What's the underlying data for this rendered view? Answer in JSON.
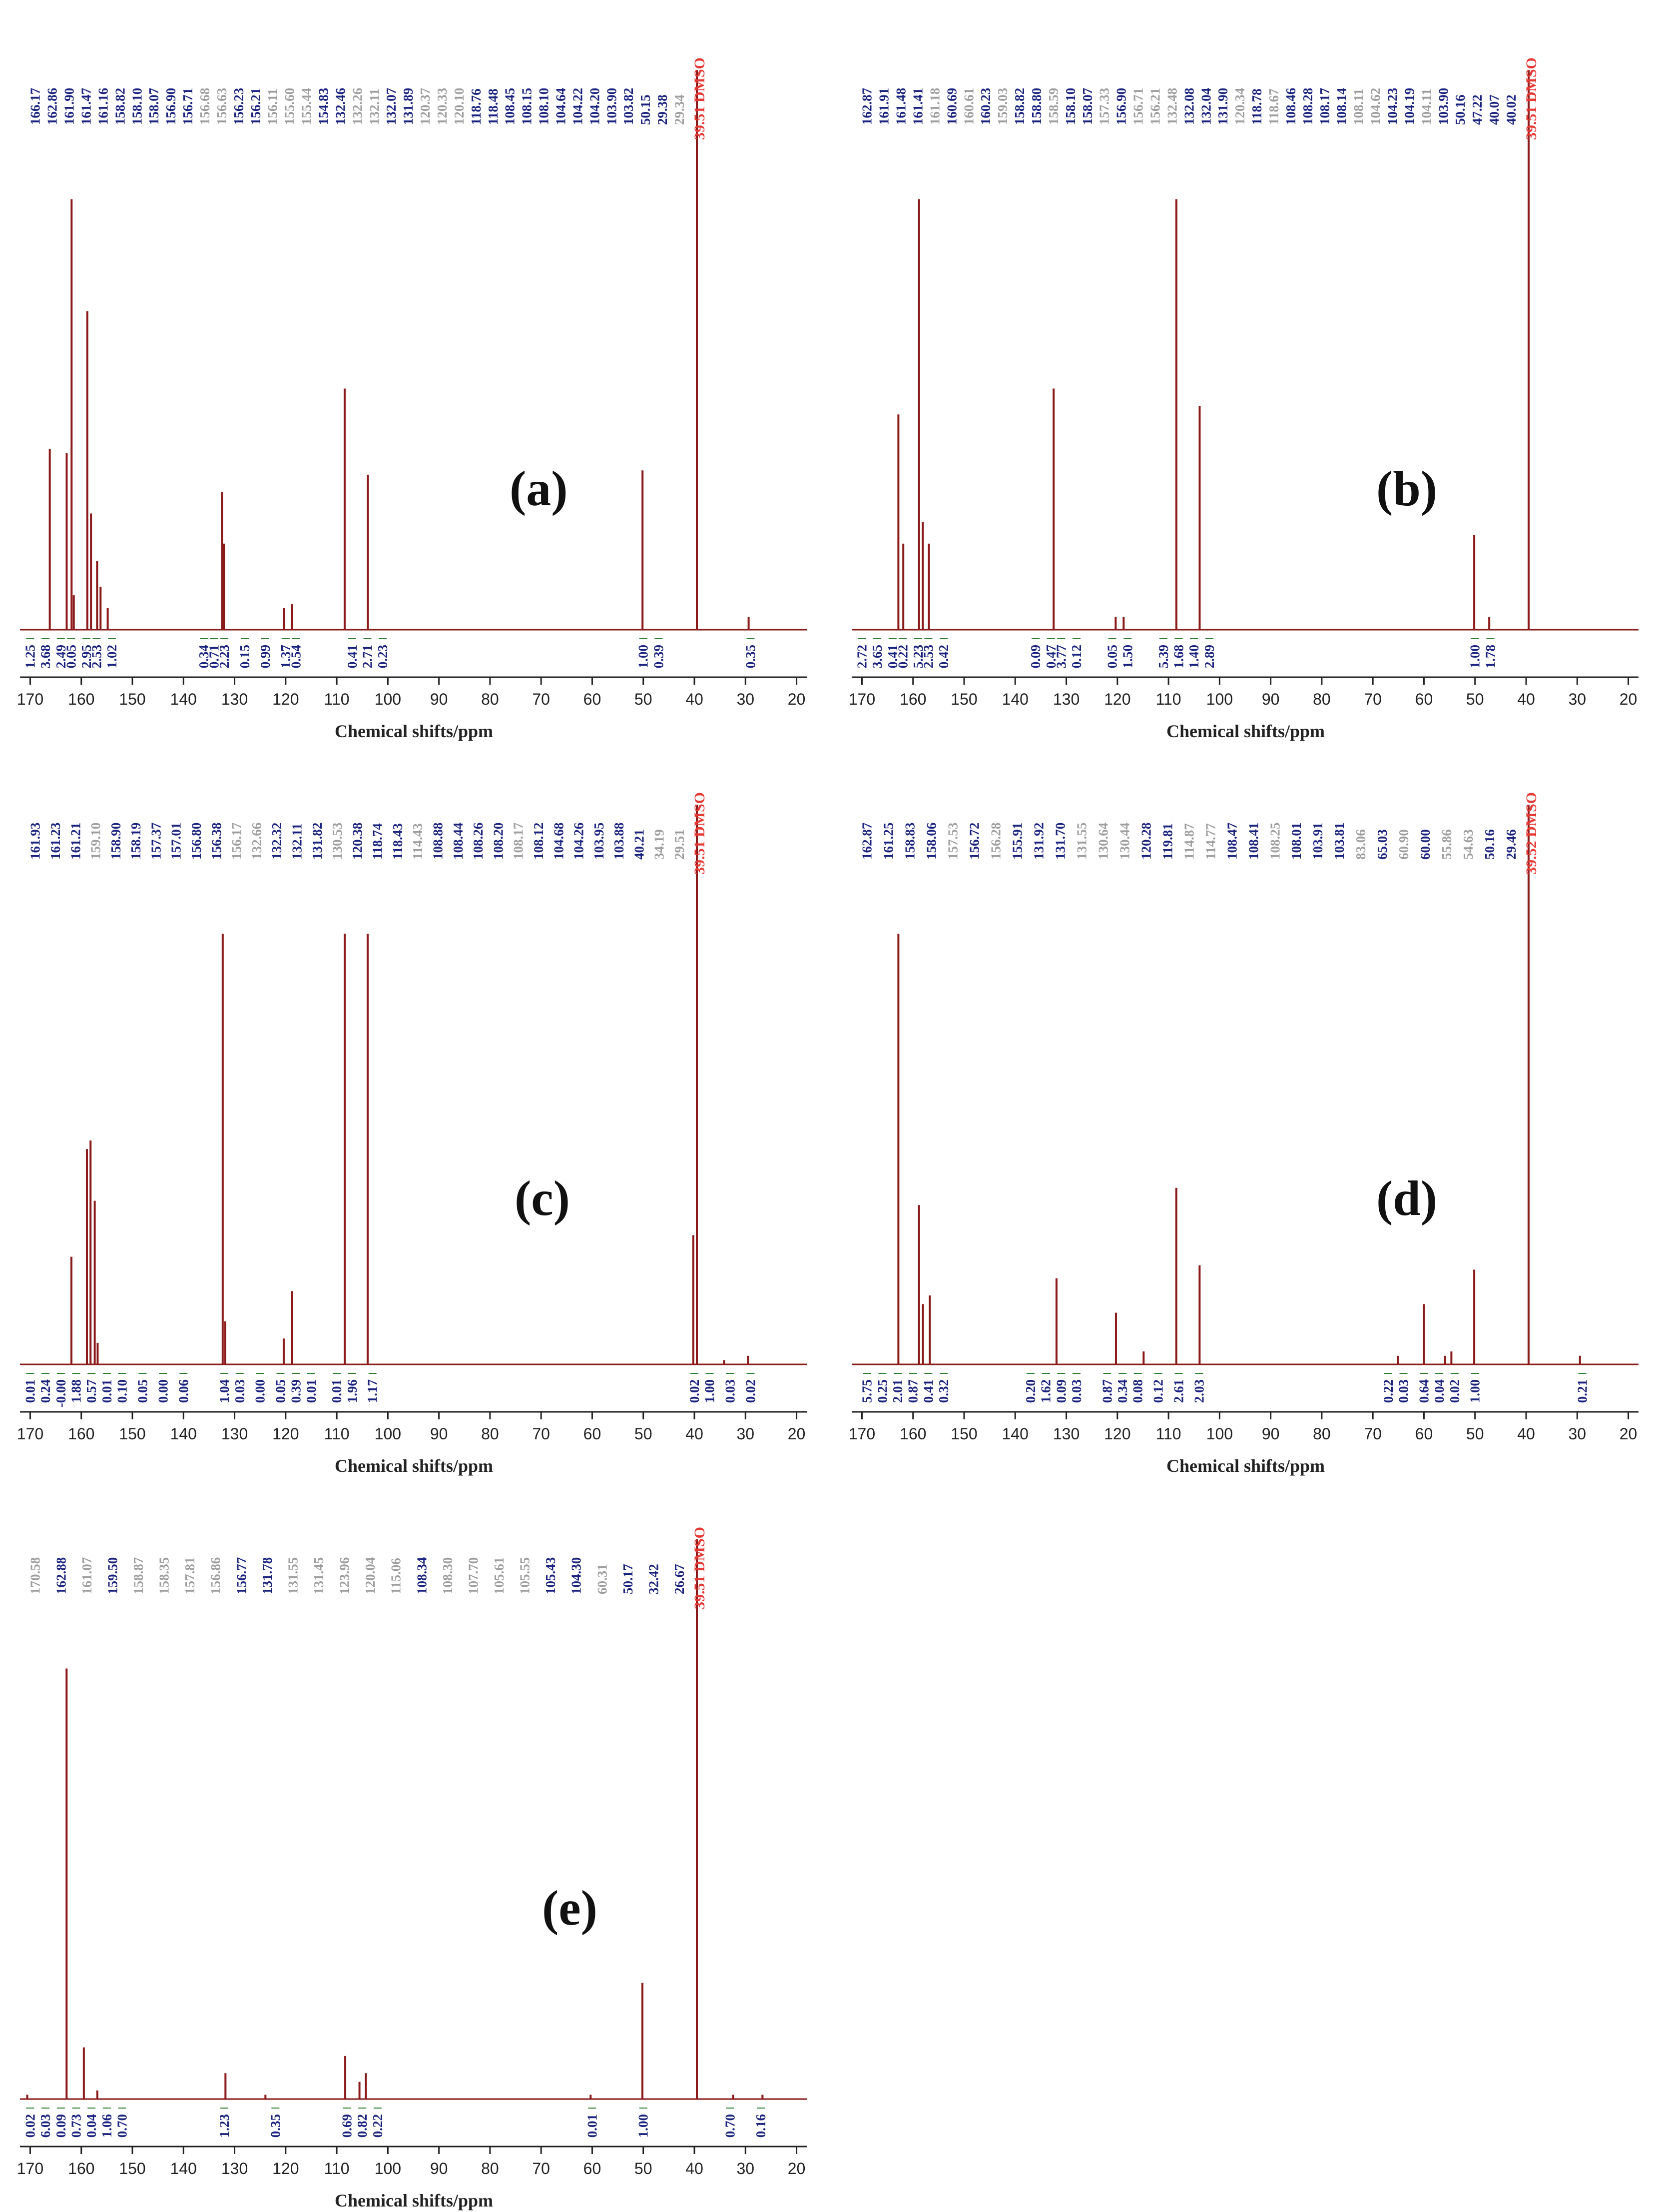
{
  "colors": {
    "spectrum": "#8b1a1a",
    "peakLabel": "#1a237e",
    "faintLabel": "#9e9e9e",
    "solvent": "#e53935",
    "integral": "#2e7d32",
    "axis": "#222222"
  },
  "chart_data": [
    {
      "type": "line",
      "panel": "(a)",
      "xlabel": "Chemical shifts/ppm",
      "xlim": [
        172,
        18
      ],
      "x_reversed": true,
      "xticks": [
        170,
        160,
        150,
        140,
        130,
        120,
        110,
        100,
        90,
        80,
        70,
        60,
        50,
        40,
        30,
        20
      ],
      "solvent_label": "39.51 DMSO",
      "peak_labels": [
        "166.17",
        "162.86",
        "161.90",
        "161.47",
        "161.16",
        "158.82",
        "158.10",
        "158.07",
        "156.90",
        "156.71",
        "156.68",
        "156.63",
        "156.23",
        "156.21",
        "156.11",
        "155.60",
        "155.44",
        "154.83",
        "132.46",
        "132.26",
        "132.11",
        "132.07",
        "131.89",
        "120.37",
        "120.33",
        "120.10",
        "118.76",
        "118.48",
        "108.45",
        "108.15",
        "108.10",
        "104.64",
        "104.22",
        "104.20",
        "103.90",
        "103.82",
        "50.15",
        "29.38",
        "29.34"
      ],
      "peak_label_faint": [
        false,
        false,
        false,
        false,
        false,
        false,
        false,
        false,
        false,
        false,
        true,
        true,
        false,
        false,
        true,
        true,
        true,
        false,
        false,
        true,
        true,
        false,
        false,
        true,
        true,
        true,
        false,
        false,
        false,
        false,
        false,
        false,
        false,
        false,
        false,
        false,
        false,
        false,
        true
      ],
      "integrals": [
        "1.25",
        "3.68",
        "2.49",
        "0.05",
        "2.95",
        "2.53",
        "1.02",
        "0.34",
        "0.71",
        "2.23",
        "0.15",
        "0.99",
        "1.37",
        "0.54",
        "0.41",
        "2.71",
        "0.23",
        "1.00",
        "0.39",
        "0.35"
      ],
      "integral_positions": [
        170,
        167,
        164,
        162,
        159,
        157,
        154,
        136,
        134,
        132,
        128,
        124,
        120,
        118,
        107,
        104,
        101,
        50,
        47,
        29
      ],
      "peaks": [
        {
          "x": 166.17,
          "y": 0.42
        },
        {
          "x": 162.86,
          "y": 0.41
        },
        {
          "x": 161.9,
          "y": 1.0
        },
        {
          "x": 161.47,
          "y": 0.08
        },
        {
          "x": 158.82,
          "y": 0.74
        },
        {
          "x": 158.1,
          "y": 0.27
        },
        {
          "x": 156.9,
          "y": 0.16
        },
        {
          "x": 156.23,
          "y": 0.1
        },
        {
          "x": 154.83,
          "y": 0.05
        },
        {
          "x": 132.46,
          "y": 0.32
        },
        {
          "x": 132.07,
          "y": 0.2
        },
        {
          "x": 120.37,
          "y": 0.05
        },
        {
          "x": 118.76,
          "y": 0.06
        },
        {
          "x": 108.45,
          "y": 0.56
        },
        {
          "x": 103.9,
          "y": 0.36
        },
        {
          "x": 50.15,
          "y": 0.37
        },
        {
          "x": 39.51,
          "y": 1.3
        },
        {
          "x": 29.38,
          "y": 0.03
        }
      ]
    },
    {
      "type": "line",
      "panel": "(b)",
      "xlabel": "Chemical shifts/ppm",
      "xlim": [
        172,
        18
      ],
      "x_reversed": true,
      "xticks": [
        170,
        160,
        150,
        140,
        130,
        120,
        110,
        100,
        90,
        80,
        70,
        60,
        50,
        40,
        30,
        20
      ],
      "solvent_label": "39.51 DMSO",
      "peak_labels": [
        "162.87",
        "161.91",
        "161.48",
        "161.41",
        "161.18",
        "160.69",
        "160.61",
        "160.23",
        "159.03",
        "158.82",
        "158.80",
        "158.59",
        "158.10",
        "158.07",
        "157.33",
        "156.90",
        "156.71",
        "156.21",
        "132.48",
        "132.08",
        "132.04",
        "131.90",
        "120.34",
        "118.78",
        "118.67",
        "108.46",
        "108.28",
        "108.17",
        "108.14",
        "108.11",
        "104.62",
        "104.23",
        "104.19",
        "104.11",
        "103.90",
        "50.16",
        "47.22",
        "40.07",
        "40.02"
      ],
      "peak_label_faint": [
        false,
        false,
        false,
        false,
        true,
        false,
        true,
        false,
        true,
        false,
        false,
        true,
        false,
        false,
        true,
        false,
        true,
        true,
        true,
        false,
        false,
        false,
        true,
        false,
        true,
        false,
        false,
        false,
        false,
        true,
        true,
        false,
        false,
        true,
        false,
        false,
        false,
        false,
        false
      ],
      "integrals": [
        "2.72",
        "3.65",
        "0.41",
        "0.22",
        "5.23",
        "2.53",
        "0.42",
        "0.09",
        "0.47",
        "3.77",
        "0.12",
        "0.05",
        "1.50",
        "5.39",
        "1.68",
        "1.40",
        "2.89",
        "1.00",
        "1.78"
      ],
      "integral_positions": [
        170,
        167,
        164,
        162,
        159,
        157,
        154,
        136,
        133,
        131,
        128,
        121,
        118,
        111,
        108,
        105,
        102,
        50,
        47
      ],
      "peaks": [
        {
          "x": 162.87,
          "y": 0.5
        },
        {
          "x": 161.91,
          "y": 0.2
        },
        {
          "x": 158.82,
          "y": 1.0
        },
        {
          "x": 158.1,
          "y": 0.25
        },
        {
          "x": 156.9,
          "y": 0.2
        },
        {
          "x": 132.48,
          "y": 0.56
        },
        {
          "x": 120.34,
          "y": 0.03
        },
        {
          "x": 118.78,
          "y": 0.03
        },
        {
          "x": 108.46,
          "y": 1.0
        },
        {
          "x": 103.9,
          "y": 0.52
        },
        {
          "x": 50.16,
          "y": 0.22
        },
        {
          "x": 47.22,
          "y": 0.03
        },
        {
          "x": 39.51,
          "y": 1.3
        }
      ]
    },
    {
      "type": "line",
      "panel": "(c)",
      "xlabel": "Chemical shifts/ppm",
      "xlim": [
        172,
        18
      ],
      "x_reversed": true,
      "xticks": [
        170,
        160,
        150,
        140,
        130,
        120,
        110,
        100,
        90,
        80,
        70,
        60,
        50,
        40,
        30,
        20
      ],
      "solvent_label": "39.51 DMSO",
      "peak_labels": [
        "161.93",
        "161.23",
        "161.21",
        "159.10",
        "158.90",
        "158.19",
        "157.37",
        "157.01",
        "156.80",
        "156.38",
        "156.17",
        "132.66",
        "132.32",
        "132.11",
        "131.82",
        "130.53",
        "120.38",
        "118.74",
        "118.43",
        "114.43",
        "108.88",
        "108.44",
        "108.26",
        "108.20",
        "108.17",
        "108.12",
        "104.68",
        "104.26",
        "103.95",
        "103.88",
        "40.21",
        "34.19",
        "29.51"
      ],
      "peak_label_faint": [
        false,
        false,
        false,
        true,
        false,
        false,
        false,
        false,
        false,
        false,
        true,
        true,
        false,
        false,
        false,
        true,
        false,
        false,
        false,
        true,
        false,
        false,
        false,
        false,
        true,
        false,
        false,
        false,
        false,
        false,
        false,
        true,
        true
      ],
      "integrals": [
        "0.01",
        "0.24",
        "-0.00",
        "1.88",
        "0.57",
        "0.01",
        "0.10",
        "0.05",
        "0.00",
        "0.06",
        "1.04",
        "0.03",
        "0.00",
        "0.05",
        "0.39",
        "0.01",
        "0.01",
        "1.96",
        "1.17",
        "0.02",
        "1.00",
        "0.03",
        "0.02"
      ],
      "integral_positions": [
        170,
        167,
        164,
        161,
        158,
        155,
        152,
        148,
        144,
        140,
        132,
        129,
        125,
        121,
        118,
        115,
        110,
        107,
        103,
        40,
        37,
        33,
        29
      ],
      "peaks": [
        {
          "x": 161.93,
          "y": 0.25
        },
        {
          "x": 158.9,
          "y": 0.5
        },
        {
          "x": 158.19,
          "y": 0.52
        },
        {
          "x": 157.37,
          "y": 0.38
        },
        {
          "x": 156.8,
          "y": 0.05
        },
        {
          "x": 132.32,
          "y": 1.0
        },
        {
          "x": 131.82,
          "y": 0.1
        },
        {
          "x": 120.38,
          "y": 0.06
        },
        {
          "x": 118.74,
          "y": 0.17
        },
        {
          "x": 108.44,
          "y": 1.0
        },
        {
          "x": 103.95,
          "y": 1.0
        },
        {
          "x": 40.21,
          "y": 0.3
        },
        {
          "x": 39.51,
          "y": 1.3
        },
        {
          "x": 34.19,
          "y": 0.01
        },
        {
          "x": 29.51,
          "y": 0.02
        }
      ]
    },
    {
      "type": "line",
      "panel": "(d)",
      "xlabel": "Chemical shifts/ppm",
      "xlim": [
        172,
        18
      ],
      "x_reversed": true,
      "xticks": [
        170,
        160,
        150,
        140,
        130,
        120,
        110,
        100,
        90,
        80,
        70,
        60,
        50,
        40,
        30,
        20
      ],
      "solvent_label": "39.52 DMSO",
      "peak_labels": [
        "162.87",
        "161.25",
        "158.83",
        "158.06",
        "157.53",
        "156.72",
        "156.28",
        "155.91",
        "131.92",
        "131.70",
        "131.55",
        "130.64",
        "130.44",
        "120.28",
        "119.81",
        "114.87",
        "114.77",
        "108.47",
        "108.41",
        "108.25",
        "108.01",
        "103.91",
        "103.81",
        "83.06",
        "65.03",
        "60.90",
        "60.00",
        "55.86",
        "54.63",
        "50.16",
        "29.46"
      ],
      "peak_label_faint": [
        false,
        false,
        false,
        false,
        true,
        false,
        true,
        false,
        false,
        false,
        true,
        true,
        true,
        false,
        false,
        true,
        true,
        false,
        false,
        true,
        false,
        false,
        false,
        true,
        false,
        true,
        false,
        true,
        true,
        false,
        false
      ],
      "integrals": [
        "5.75",
        "0.25",
        "2.01",
        "0.87",
        "0.41",
        "0.32",
        "0.20",
        "1.62",
        "0.09",
        "0.03",
        "0.87",
        "0.34",
        "0.08",
        "0.12",
        "2.61",
        "2.03",
        "0.22",
        "0.03",
        "0.64",
        "0.04",
        "0.02",
        "1.00",
        "0.21"
      ],
      "integral_positions": [
        169,
        166,
        163,
        160,
        157,
        154,
        137,
        134,
        131,
        128,
        122,
        119,
        116,
        112,
        108,
        104,
        67,
        64,
        60,
        57,
        54,
        50,
        29
      ],
      "peaks": [
        {
          "x": 162.87,
          "y": 1.0
        },
        {
          "x": 158.83,
          "y": 0.37
        },
        {
          "x": 158.06,
          "y": 0.14
        },
        {
          "x": 156.72,
          "y": 0.16
        },
        {
          "x": 131.92,
          "y": 0.2
        },
        {
          "x": 120.28,
          "y": 0.12
        },
        {
          "x": 114.87,
          "y": 0.03
        },
        {
          "x": 108.47,
          "y": 0.41
        },
        {
          "x": 103.91,
          "y": 0.23
        },
        {
          "x": 65.03,
          "y": 0.02
        },
        {
          "x": 60.0,
          "y": 0.14
        },
        {
          "x": 55.86,
          "y": 0.02
        },
        {
          "x": 54.63,
          "y": 0.03
        },
        {
          "x": 50.16,
          "y": 0.22
        },
        {
          "x": 39.52,
          "y": 1.3
        },
        {
          "x": 29.46,
          "y": 0.02
        }
      ]
    },
    {
      "type": "line",
      "panel": "(e)",
      "xlabel": "Chemical shifts/ppm",
      "xlim": [
        172,
        18
      ],
      "x_reversed": true,
      "xticks": [
        170,
        160,
        150,
        140,
        130,
        120,
        110,
        100,
        90,
        80,
        70,
        60,
        50,
        40,
        30,
        20
      ],
      "solvent_label": "39.51 DMSO",
      "peak_labels": [
        "170.58",
        "162.88",
        "161.07",
        "159.50",
        "158.87",
        "158.35",
        "157.81",
        "156.86",
        "156.77",
        "131.78",
        "131.55",
        "131.45",
        "123.96",
        "120.04",
        "115.06",
        "108.34",
        "108.30",
        "107.70",
        "105.61",
        "105.55",
        "105.43",
        "104.30",
        "60.31",
        "50.17",
        "32.42",
        "26.67"
      ],
      "peak_label_faint": [
        true,
        false,
        true,
        false,
        true,
        true,
        true,
        true,
        false,
        false,
        true,
        true,
        true,
        true,
        true,
        false,
        true,
        true,
        true,
        true,
        false,
        false,
        true,
        false,
        false,
        false
      ],
      "integrals": [
        "0.02",
        "6.03",
        "0.09",
        "0.73",
        "0.04",
        "1.06",
        "0.70",
        "1.23",
        "0.35",
        "0.69",
        "0.82",
        "0.22",
        "0.01",
        "1.00",
        "0.70",
        "0.16"
      ],
      "integral_positions": [
        170,
        167,
        164,
        161,
        158,
        155,
        152,
        132,
        122,
        108,
        105,
        102,
        60,
        50,
        33,
        27
      ],
      "peaks": [
        {
          "x": 170.58,
          "y": 0.01
        },
        {
          "x": 162.88,
          "y": 1.0
        },
        {
          "x": 159.5,
          "y": 0.12
        },
        {
          "x": 156.86,
          "y": 0.02
        },
        {
          "x": 131.78,
          "y": 0.06
        },
        {
          "x": 123.96,
          "y": 0.01
        },
        {
          "x": 108.34,
          "y": 0.1
        },
        {
          "x": 105.55,
          "y": 0.04
        },
        {
          "x": 104.3,
          "y": 0.06
        },
        {
          "x": 60.31,
          "y": 0.01
        },
        {
          "x": 50.17,
          "y": 0.27
        },
        {
          "x": 39.51,
          "y": 1.3
        },
        {
          "x": 32.42,
          "y": 0.01
        },
        {
          "x": 26.67,
          "y": 0.01
        }
      ]
    }
  ]
}
